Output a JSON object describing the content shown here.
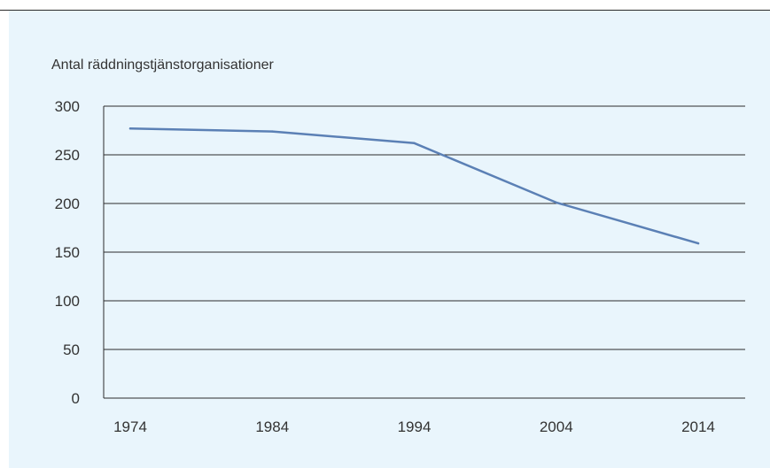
{
  "colors": {
    "panel_background": "#e9f5fc",
    "series_line": "#5b80b5",
    "grid": "#2b2b2b",
    "text": "#333333"
  },
  "chart_data": {
    "type": "line",
    "title": "",
    "xlabel": "",
    "ylabel": "Antal räddningstjänstorganisationer",
    "categories": [
      "1974",
      "1984",
      "1994",
      "2004",
      "2014"
    ],
    "series": [
      {
        "values": [
          277,
          274,
          262,
          201,
          159
        ]
      }
    ],
    "ylim": [
      0,
      300
    ],
    "yticks": [
      "0",
      "50",
      "100",
      "150",
      "200",
      "250",
      "300"
    ],
    "grid": "horizontal",
    "legend": "none"
  }
}
